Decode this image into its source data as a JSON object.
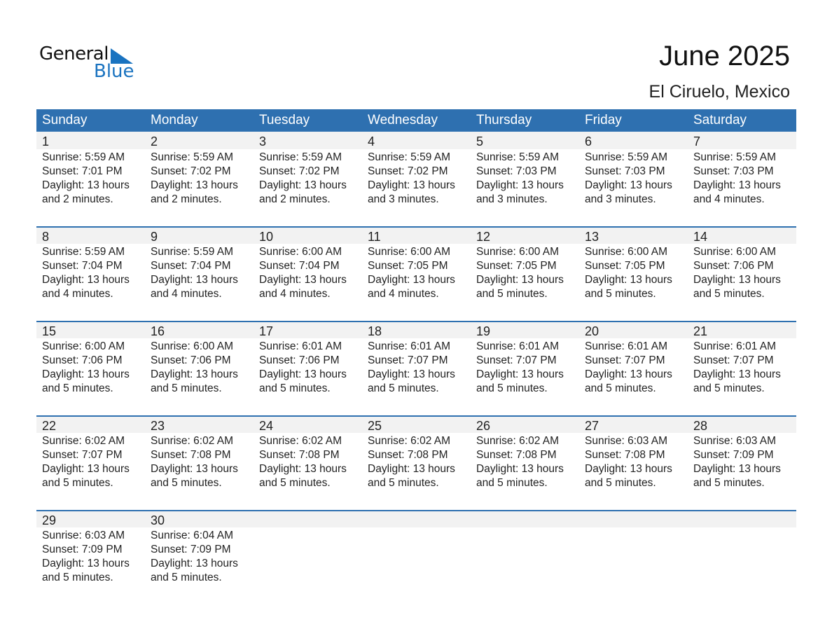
{
  "logo": {
    "line1": "General",
    "line2": "Blue",
    "color": "#1a73c0"
  },
  "title": "June 2025",
  "location": "El Ciruelo, Mexico",
  "accent_color": "#2e70b0",
  "weekdays": [
    "Sunday",
    "Monday",
    "Tuesday",
    "Wednesday",
    "Thursday",
    "Friday",
    "Saturday"
  ],
  "weeks": [
    [
      {
        "day": "1",
        "sunrise": "Sunrise: 5:59 AM",
        "sunset": "Sunset: 7:01 PM",
        "daylight1": "Daylight: 13 hours",
        "daylight2": "and 2 minutes."
      },
      {
        "day": "2",
        "sunrise": "Sunrise: 5:59 AM",
        "sunset": "Sunset: 7:02 PM",
        "daylight1": "Daylight: 13 hours",
        "daylight2": "and 2 minutes."
      },
      {
        "day": "3",
        "sunrise": "Sunrise: 5:59 AM",
        "sunset": "Sunset: 7:02 PM",
        "daylight1": "Daylight: 13 hours",
        "daylight2": "and 2 minutes."
      },
      {
        "day": "4",
        "sunrise": "Sunrise: 5:59 AM",
        "sunset": "Sunset: 7:02 PM",
        "daylight1": "Daylight: 13 hours",
        "daylight2": "and 3 minutes."
      },
      {
        "day": "5",
        "sunrise": "Sunrise: 5:59 AM",
        "sunset": "Sunset: 7:03 PM",
        "daylight1": "Daylight: 13 hours",
        "daylight2": "and 3 minutes."
      },
      {
        "day": "6",
        "sunrise": "Sunrise: 5:59 AM",
        "sunset": "Sunset: 7:03 PM",
        "daylight1": "Daylight: 13 hours",
        "daylight2": "and 3 minutes."
      },
      {
        "day": "7",
        "sunrise": "Sunrise: 5:59 AM",
        "sunset": "Sunset: 7:03 PM",
        "daylight1": "Daylight: 13 hours",
        "daylight2": "and 4 minutes."
      }
    ],
    [
      {
        "day": "8",
        "sunrise": "Sunrise: 5:59 AM",
        "sunset": "Sunset: 7:04 PM",
        "daylight1": "Daylight: 13 hours",
        "daylight2": "and 4 minutes."
      },
      {
        "day": "9",
        "sunrise": "Sunrise: 5:59 AM",
        "sunset": "Sunset: 7:04 PM",
        "daylight1": "Daylight: 13 hours",
        "daylight2": "and 4 minutes."
      },
      {
        "day": "10",
        "sunrise": "Sunrise: 6:00 AM",
        "sunset": "Sunset: 7:04 PM",
        "daylight1": "Daylight: 13 hours",
        "daylight2": "and 4 minutes."
      },
      {
        "day": "11",
        "sunrise": "Sunrise: 6:00 AM",
        "sunset": "Sunset: 7:05 PM",
        "daylight1": "Daylight: 13 hours",
        "daylight2": "and 4 minutes."
      },
      {
        "day": "12",
        "sunrise": "Sunrise: 6:00 AM",
        "sunset": "Sunset: 7:05 PM",
        "daylight1": "Daylight: 13 hours",
        "daylight2": "and 5 minutes."
      },
      {
        "day": "13",
        "sunrise": "Sunrise: 6:00 AM",
        "sunset": "Sunset: 7:05 PM",
        "daylight1": "Daylight: 13 hours",
        "daylight2": "and 5 minutes."
      },
      {
        "day": "14",
        "sunrise": "Sunrise: 6:00 AM",
        "sunset": "Sunset: 7:06 PM",
        "daylight1": "Daylight: 13 hours",
        "daylight2": "and 5 minutes."
      }
    ],
    [
      {
        "day": "15",
        "sunrise": "Sunrise: 6:00 AM",
        "sunset": "Sunset: 7:06 PM",
        "daylight1": "Daylight: 13 hours",
        "daylight2": "and 5 minutes."
      },
      {
        "day": "16",
        "sunrise": "Sunrise: 6:00 AM",
        "sunset": "Sunset: 7:06 PM",
        "daylight1": "Daylight: 13 hours",
        "daylight2": "and 5 minutes."
      },
      {
        "day": "17",
        "sunrise": "Sunrise: 6:01 AM",
        "sunset": "Sunset: 7:06 PM",
        "daylight1": "Daylight: 13 hours",
        "daylight2": "and 5 minutes."
      },
      {
        "day": "18",
        "sunrise": "Sunrise: 6:01 AM",
        "sunset": "Sunset: 7:07 PM",
        "daylight1": "Daylight: 13 hours",
        "daylight2": "and 5 minutes."
      },
      {
        "day": "19",
        "sunrise": "Sunrise: 6:01 AM",
        "sunset": "Sunset: 7:07 PM",
        "daylight1": "Daylight: 13 hours",
        "daylight2": "and 5 minutes."
      },
      {
        "day": "20",
        "sunrise": "Sunrise: 6:01 AM",
        "sunset": "Sunset: 7:07 PM",
        "daylight1": "Daylight: 13 hours",
        "daylight2": "and 5 minutes."
      },
      {
        "day": "21",
        "sunrise": "Sunrise: 6:01 AM",
        "sunset": "Sunset: 7:07 PM",
        "daylight1": "Daylight: 13 hours",
        "daylight2": "and 5 minutes."
      }
    ],
    [
      {
        "day": "22",
        "sunrise": "Sunrise: 6:02 AM",
        "sunset": "Sunset: 7:07 PM",
        "daylight1": "Daylight: 13 hours",
        "daylight2": "and 5 minutes."
      },
      {
        "day": "23",
        "sunrise": "Sunrise: 6:02 AM",
        "sunset": "Sunset: 7:08 PM",
        "daylight1": "Daylight: 13 hours",
        "daylight2": "and 5 minutes."
      },
      {
        "day": "24",
        "sunrise": "Sunrise: 6:02 AM",
        "sunset": "Sunset: 7:08 PM",
        "daylight1": "Daylight: 13 hours",
        "daylight2": "and 5 minutes."
      },
      {
        "day": "25",
        "sunrise": "Sunrise: 6:02 AM",
        "sunset": "Sunset: 7:08 PM",
        "daylight1": "Daylight: 13 hours",
        "daylight2": "and 5 minutes."
      },
      {
        "day": "26",
        "sunrise": "Sunrise: 6:02 AM",
        "sunset": "Sunset: 7:08 PM",
        "daylight1": "Daylight: 13 hours",
        "daylight2": "and 5 minutes."
      },
      {
        "day": "27",
        "sunrise": "Sunrise: 6:03 AM",
        "sunset": "Sunset: 7:08 PM",
        "daylight1": "Daylight: 13 hours",
        "daylight2": "and 5 minutes."
      },
      {
        "day": "28",
        "sunrise": "Sunrise: 6:03 AM",
        "sunset": "Sunset: 7:09 PM",
        "daylight1": "Daylight: 13 hours",
        "daylight2": "and 5 minutes."
      }
    ],
    [
      {
        "day": "29",
        "sunrise": "Sunrise: 6:03 AM",
        "sunset": "Sunset: 7:09 PM",
        "daylight1": "Daylight: 13 hours",
        "daylight2": "and 5 minutes."
      },
      {
        "day": "30",
        "sunrise": "Sunrise: 6:04 AM",
        "sunset": "Sunset: 7:09 PM",
        "daylight1": "Daylight: 13 hours",
        "daylight2": "and 5 minutes."
      }
    ]
  ]
}
